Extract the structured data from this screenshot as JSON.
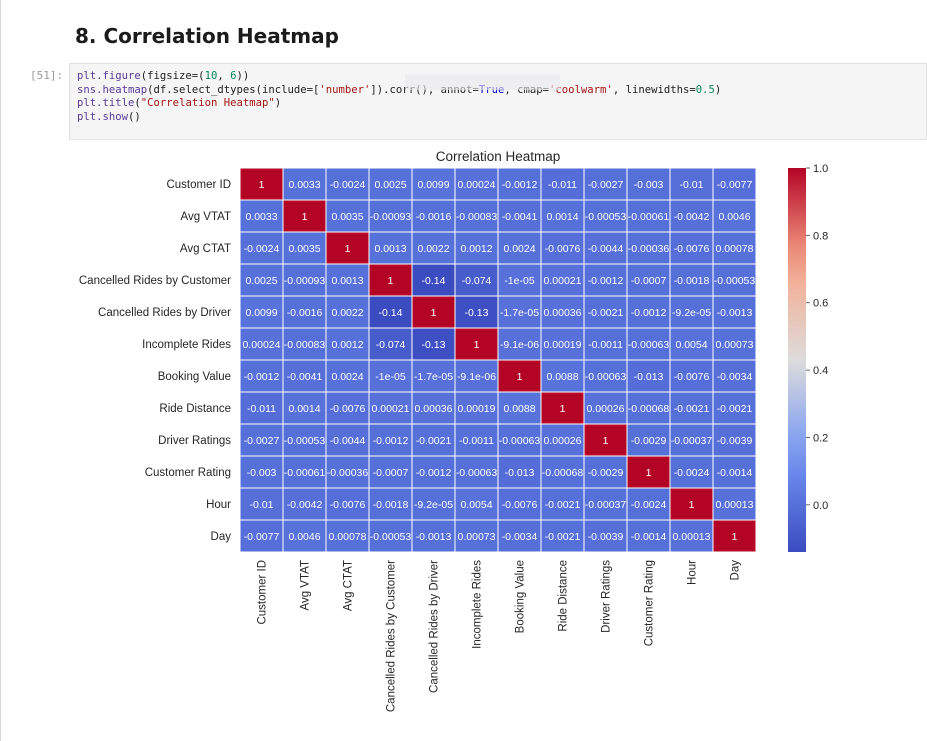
{
  "heading": "8. Correlation Heatmap",
  "cell": {
    "prompt": "[51]:",
    "code": [
      [
        {
          "t": "fn",
          "v": "plt.figure"
        },
        {
          "t": "txt",
          "v": "(figsize=("
        },
        {
          "t": "num",
          "v": "10"
        },
        {
          "t": "txt",
          "v": ", "
        },
        {
          "t": "num",
          "v": "6"
        },
        {
          "t": "txt",
          "v": "))"
        }
      ],
      [
        {
          "t": "fn",
          "v": "sns.heatmap"
        },
        {
          "t": "txt",
          "v": "(df.select_dtypes(include=["
        },
        {
          "t": "str",
          "v": "'number'"
        },
        {
          "t": "txt",
          "v": "]).corr(), annot="
        },
        {
          "t": "kw",
          "v": "True"
        },
        {
          "t": "txt",
          "v": ", cmap="
        },
        {
          "t": "str",
          "v": "'coolwarm'"
        },
        {
          "t": "txt",
          "v": ", linewidths="
        },
        {
          "t": "num",
          "v": "0.5"
        },
        {
          "t": "txt",
          "v": ")"
        }
      ],
      [
        {
          "t": "fn",
          "v": "plt.title"
        },
        {
          "t": "txt",
          "v": "("
        },
        {
          "t": "str",
          "v": "\"Correlation Heatmap\""
        },
        {
          "t": "txt",
          "v": ")"
        }
      ],
      [
        {
          "t": "fn",
          "v": "plt.show"
        },
        {
          "t": "txt",
          "v": "()"
        }
      ]
    ]
  },
  "colors": {
    "low": "#3b4cc0",
    "mid": "#dddcdc",
    "high": "#b40426"
  },
  "chart_data": {
    "type": "heatmap",
    "title": "Correlation Heatmap",
    "labels": [
      "Customer ID",
      "Avg VTAT",
      "Avg CTAT",
      "Cancelled Rides by Customer",
      "Cancelled Rides by Driver",
      "Incomplete Rides",
      "Booking Value",
      "Ride Distance",
      "Driver Ratings",
      "Customer Rating",
      "Hour",
      "Day"
    ],
    "values": [
      [
        1,
        0.0033,
        -0.0024,
        0.0025,
        0.0099,
        0.00024,
        -0.0012,
        -0.011,
        -0.0027,
        -0.003,
        -0.01,
        -0.0077
      ],
      [
        0.0033,
        1,
        0.0035,
        -0.00093,
        -0.0016,
        -0.00083,
        -0.0041,
        0.0014,
        -0.00053,
        -0.00061,
        -0.0042,
        0.0046
      ],
      [
        -0.0024,
        0.0035,
        1,
        0.0013,
        0.0022,
        0.0012,
        0.0024,
        -0.0076,
        -0.0044,
        -0.00036,
        -0.0076,
        0.00078
      ],
      [
        0.0025,
        -0.00093,
        0.0013,
        1,
        -0.14,
        -0.074,
        -1e-05,
        0.00021,
        -0.0012,
        -0.0007,
        -0.0018,
        -0.00053
      ],
      [
        0.0099,
        -0.0016,
        0.0022,
        -0.14,
        1,
        -0.13,
        -1.7e-05,
        0.00036,
        -0.0021,
        -0.0012,
        -9.2e-05,
        -0.0013
      ],
      [
        0.00024,
        -0.00083,
        0.0012,
        -0.074,
        -0.13,
        1,
        -9.1e-06,
        0.00019,
        -0.0011,
        -0.00063,
        0.0054,
        0.00073
      ],
      [
        -0.0012,
        -0.0041,
        0.0024,
        -1e-05,
        -1.7e-05,
        -9.1e-06,
        1,
        0.0088,
        -0.00063,
        -0.013,
        -0.0076,
        -0.0034
      ],
      [
        -0.011,
        0.0014,
        -0.0076,
        0.00021,
        0.00036,
        0.00019,
        0.0088,
        1,
        0.00026,
        -0.00068,
        -0.0021,
        -0.0021
      ],
      [
        -0.0027,
        -0.00053,
        -0.0044,
        -0.0012,
        -0.0021,
        -0.0011,
        -0.00063,
        0.00026,
        1,
        -0.0029,
        -0.00037,
        -0.0039
      ],
      [
        -0.003,
        -0.00061,
        -0.00036,
        -0.0007,
        -0.0012,
        -0.00063,
        -0.013,
        -0.00068,
        -0.0029,
        1,
        -0.0024,
        -0.0014
      ],
      [
        -0.01,
        -0.0042,
        -0.0076,
        -0.0018,
        -9.2e-05,
        0.0054,
        -0.0076,
        -0.0021,
        -0.00037,
        -0.0024,
        1,
        0.00013
      ],
      [
        -0.0077,
        0.0046,
        0.00078,
        -0.00053,
        -0.0013,
        0.00073,
        -0.0034,
        -0.0021,
        -0.0039,
        -0.0014,
        0.00013,
        1
      ]
    ],
    "annotations": [
      [
        "1",
        "0.0033",
        "-0.0024",
        "0.0025",
        "0.0099",
        "0.00024",
        "-0.0012",
        "-0.011",
        "-0.0027",
        "-0.003",
        "-0.01",
        "-0.0077"
      ],
      [
        "0.0033",
        "1",
        "0.0035",
        "-0.00093",
        "-0.0016",
        "-0.00083",
        "-0.0041",
        "0.0014",
        "-0.00053",
        "-0.00061",
        "-0.0042",
        "0.0046"
      ],
      [
        "-0.0024",
        "0.0035",
        "1",
        "0.0013",
        "0.0022",
        "0.0012",
        "0.0024",
        "-0.0076",
        "-0.0044",
        "-0.00036",
        "-0.0076",
        "0.00078"
      ],
      [
        "0.0025",
        "-0.00093",
        "0.0013",
        "1",
        "-0.14",
        "-0.074",
        "-1e-05",
        "0.00021",
        "-0.0012",
        "-0.0007",
        "-0.0018",
        "-0.00053"
      ],
      [
        "0.0099",
        "-0.0016",
        "0.0022",
        "-0.14",
        "1",
        "-0.13",
        "-1.7e-05",
        "0.00036",
        "-0.0021",
        "-0.0012",
        "-9.2e-05",
        "-0.0013"
      ],
      [
        "0.00024",
        "-0.00083",
        "0.0012",
        "-0.074",
        "-0.13",
        "1",
        "-9.1e-06",
        "0.00019",
        "-0.0011",
        "-0.00063",
        "0.0054",
        "0.00073"
      ],
      [
        "-0.0012",
        "-0.0041",
        "0.0024",
        "-1e-05",
        "-1.7e-05",
        "-9.1e-06",
        "1",
        "0.0088",
        "-0.00063",
        "-0.013",
        "-0.0076",
        "-0.0034"
      ],
      [
        "-0.011",
        "0.0014",
        "-0.0076",
        "0.00021",
        "0.00036",
        "0.00019",
        "0.0088",
        "1",
        "0.00026",
        "-0.00068",
        "-0.0021",
        "-0.0021"
      ],
      [
        "-0.0027",
        "-0.00053",
        "-0.0044",
        "-0.0012",
        "-0.0021",
        "-0.0011",
        "-0.00063",
        "0.00026",
        "1",
        "-0.0029",
        "-0.00037",
        "-0.0039"
      ],
      [
        "-0.003",
        "-0.00061",
        "-0.00036",
        "-0.0007",
        "-0.0012",
        "-0.00063",
        "-0.013",
        "-0.00068",
        "-0.0029",
        "1",
        "-0.0024",
        "-0.0014"
      ],
      [
        "-0.01",
        "-0.0042",
        "-0.0076",
        "-0.0018",
        "-9.2e-05",
        "0.0054",
        "-0.0076",
        "-0.0021",
        "-0.00037",
        "-0.0024",
        "1",
        "0.00013"
      ],
      [
        "-0.0077",
        "0.0046",
        "0.00078",
        "-0.00053",
        "-0.0013",
        "0.00073",
        "-0.0034",
        "-0.0021",
        "-0.0039",
        "-0.0014",
        "0.00013",
        "1"
      ]
    ],
    "colorbar": {
      "vmin": -0.14,
      "vmax": 1.0,
      "ticks": [
        1.0,
        0.8,
        0.6,
        0.4,
        0.2,
        0.0
      ],
      "tick_labels": [
        "1.0",
        "0.8",
        "0.6",
        "0.4",
        "0.2",
        "0.0"
      ]
    },
    "cmap": "coolwarm"
  }
}
